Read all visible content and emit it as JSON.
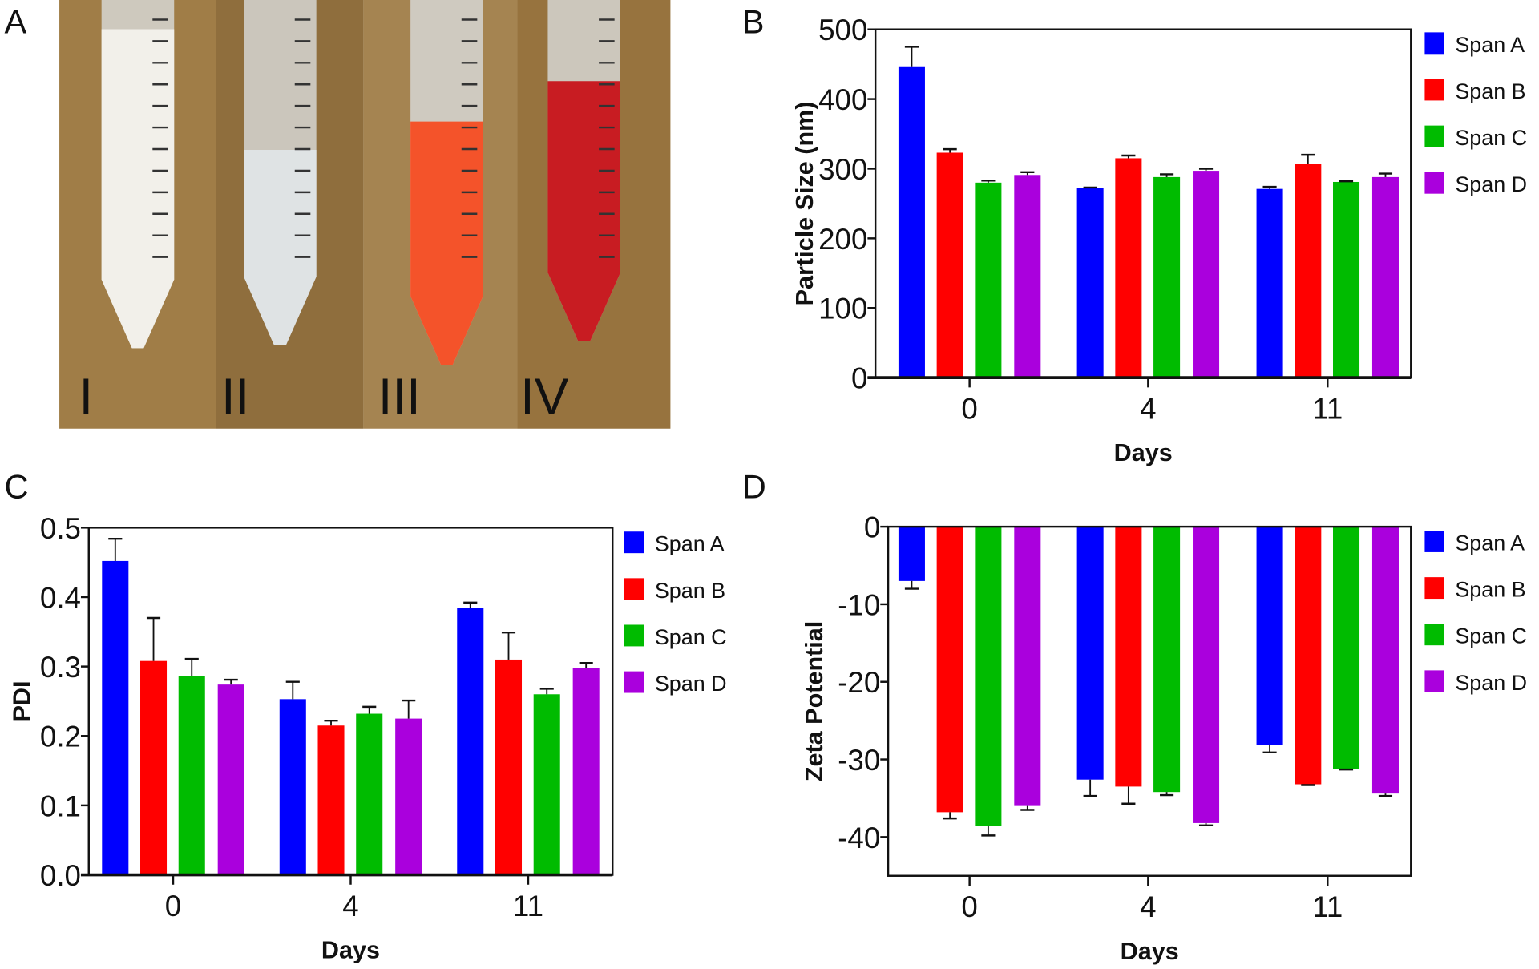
{
  "panel_labels": [
    "A",
    "B",
    "C",
    "D"
  ],
  "photo": {
    "tube_labels": [
      "I",
      "II",
      "III",
      "IV"
    ],
    "tube_colors": [
      "#f2f0ea",
      "#dfe3e4",
      "#f4532a",
      "#c81c22"
    ],
    "background": "#9c7a45"
  },
  "colors": {
    "Span A": "#0000ff",
    "Span B": "#ff0000",
    "Span C": "#00bb00",
    "Span D": "#aa00dd"
  },
  "chart_data": [
    {
      "panel": "B",
      "type": "bar",
      "categories": [
        "0",
        "4",
        "11"
      ],
      "xlabel": "Days",
      "ylabel": "Particle Size (nm)",
      "ylim": [
        0,
        500
      ],
      "yticks": [
        "0",
        "100",
        "200",
        "300",
        "400",
        "500"
      ],
      "legend": "right",
      "series": [
        {
          "name": "Span A",
          "values": [
            447,
            272,
            271
          ],
          "errors": [
            28,
            1,
            3
          ]
        },
        {
          "name": "Span B",
          "values": [
            323,
            315,
            307
          ],
          "errors": [
            5,
            4,
            13
          ]
        },
        {
          "name": "Span C",
          "values": [
            280,
            288,
            281
          ],
          "errors": [
            3,
            4,
            1
          ]
        },
        {
          "name": "Span D",
          "values": [
            291,
            297,
            288
          ],
          "errors": [
            4,
            3,
            5
          ]
        }
      ]
    },
    {
      "panel": "C",
      "type": "bar",
      "categories": [
        "0",
        "4",
        "11"
      ],
      "xlabel": "Days",
      "ylabel": "PDI",
      "ylim": [
        0,
        0.5
      ],
      "yticks": [
        "0.0",
        "0.1",
        "0.2",
        "0.3",
        "0.4",
        "0.5"
      ],
      "legend": "right",
      "series": [
        {
          "name": "Span A",
          "values": [
            0.452,
            0.253,
            0.384
          ],
          "errors": [
            0.032,
            0.025,
            0.008
          ]
        },
        {
          "name": "Span B",
          "values": [
            0.308,
            0.215,
            0.31
          ],
          "errors": [
            0.062,
            0.007,
            0.039
          ]
        },
        {
          "name": "Span C",
          "values": [
            0.286,
            0.232,
            0.26
          ],
          "errors": [
            0.025,
            0.01,
            0.008
          ]
        },
        {
          "name": "Span D",
          "values": [
            0.274,
            0.225,
            0.298
          ],
          "errors": [
            0.007,
            0.026,
            0.007
          ]
        }
      ]
    },
    {
      "panel": "D",
      "type": "bar",
      "categories": [
        "0",
        "4",
        "11"
      ],
      "xlabel": "Days",
      "ylabel": "Zeta Potential",
      "ylim": [
        -45,
        0
      ],
      "yticks": [
        "0",
        "-10",
        "-20",
        "-30",
        "-40"
      ],
      "legend": "right",
      "series": [
        {
          "name": "Span A",
          "values": [
            -7.0,
            -32.6,
            -28.1
          ],
          "errors": [
            1.0,
            2.1,
            1.0
          ]
        },
        {
          "name": "Span B",
          "values": [
            -36.8,
            -33.5,
            -33.2
          ],
          "errors": [
            0.8,
            2.2,
            0.1
          ]
        },
        {
          "name": "Span C",
          "values": [
            -38.6,
            -34.2,
            -31.2
          ],
          "errors": [
            1.2,
            0.4,
            0.1
          ]
        },
        {
          "name": "Span D",
          "values": [
            -36.0,
            -38.2,
            -34.4
          ],
          "errors": [
            0.5,
            0.3,
            0.3
          ]
        }
      ]
    }
  ]
}
